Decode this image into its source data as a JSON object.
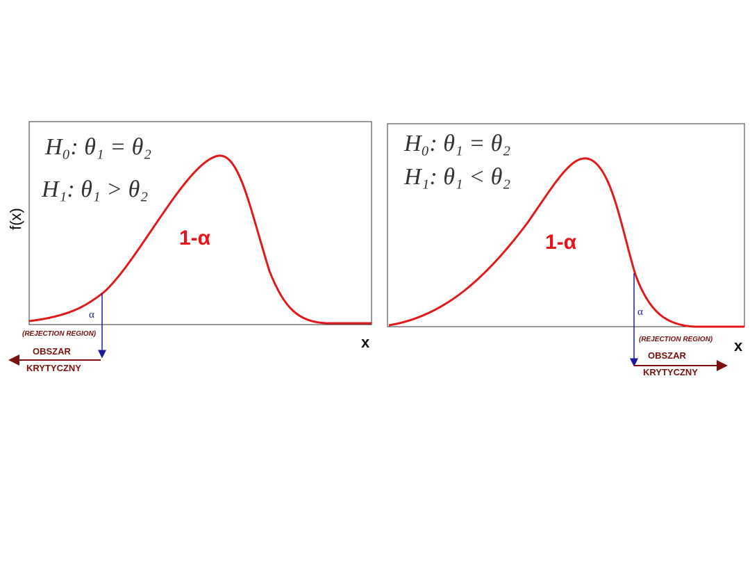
{
  "left": {
    "y_label": "f(x)",
    "h0": "H₀: θ₁ = θ₂",
    "h1": "H₁: θ₁ > θ₂",
    "one_minus_alpha": "1-α",
    "alpha": "α",
    "rejection_region": "(REJECTION REGION)",
    "region_line1": "OBSZAR",
    "region_line2": "KRYTYCZNY",
    "x_label": "x"
  },
  "right": {
    "h0": "H₀: θ₁ = θ₂",
    "h1": "H₁: θ₁ < θ₂",
    "one_minus_alpha": "1-α",
    "alpha": "α",
    "rejection_region": "(REJECTION REGION)",
    "region_line1": "OBSZAR",
    "region_line2": "KRYTYCZNY",
    "x_label": "x"
  }
}
